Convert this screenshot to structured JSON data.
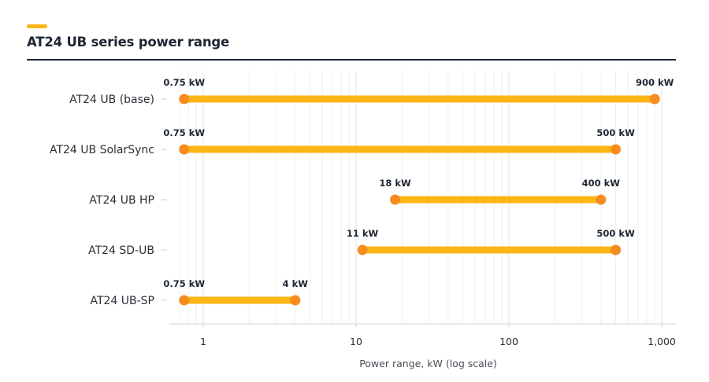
{
  "page": {
    "title": "AT24 UB series power range"
  },
  "chart_data": {
    "type": "dumbbell",
    "title": "AT24 UB series power range",
    "xlabel": "Power range, kW (log scale)",
    "ylabel": "",
    "x_scale": "log",
    "xlim": [
      0.6,
      1000
    ],
    "x_ticks": [
      {
        "value": 1,
        "label": "1"
      },
      {
        "value": 10,
        "label": "10"
      },
      {
        "value": 100,
        "label": "100"
      },
      {
        "value": 1000,
        "label": "1,000"
      }
    ],
    "grid": "vertical minor",
    "colors": {
      "bar": "#fbb615",
      "endpoint": "#f68c1f",
      "accent": "#fbb615",
      "text": "#1d2733"
    },
    "categories": [
      "AT24 UB (base)",
      "AT24 UB SolarSync",
      "AT24 UB HP",
      "AT24 SD-UB",
      "AT24 UB-SP"
    ],
    "ranges": [
      {
        "category": "AT24 UB (base)",
        "min": 0.75,
        "max": 900,
        "min_label": "0.75 kW",
        "max_label": "900 kW"
      },
      {
        "category": "AT24 UB SolarSync",
        "min": 0.75,
        "max": 500,
        "min_label": "0.75 kW",
        "max_label": "500 kW"
      },
      {
        "category": "AT24 UB HP",
        "min": 18,
        "max": 400,
        "min_label": "18 kW",
        "max_label": "400 kW"
      },
      {
        "category": "AT24 SD-UB",
        "min": 11,
        "max": 500,
        "min_label": "11 kW",
        "max_label": "500 kW"
      },
      {
        "category": "AT24 UB-SP",
        "min": 0.75,
        "max": 4,
        "min_label": "0.75 kW",
        "max_label": "4 kW"
      }
    ]
  }
}
